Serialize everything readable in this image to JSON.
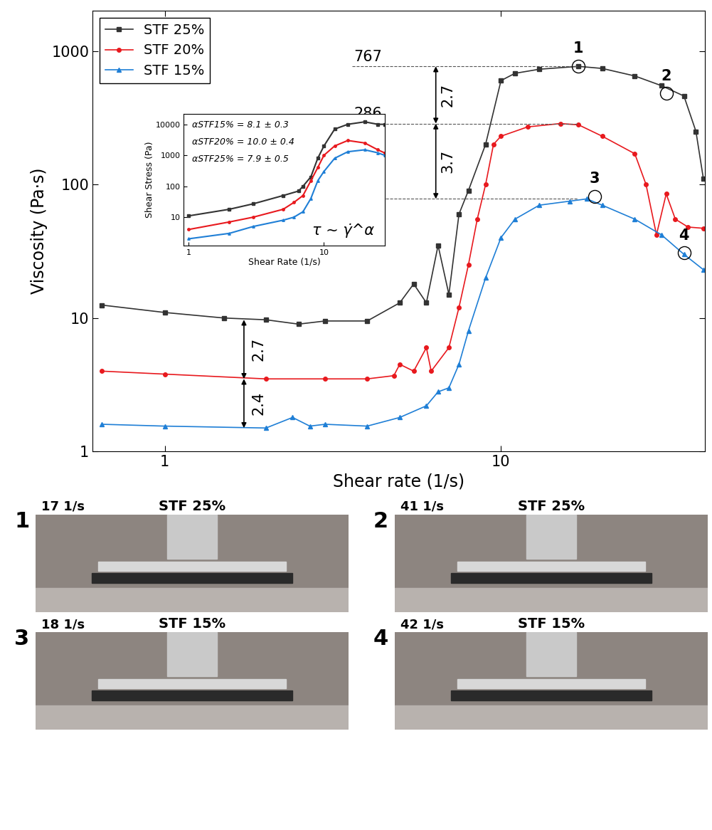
{
  "chart_data": [
    {
      "type": "line",
      "x_label": "Shear rate (1/s)",
      "y_label": "Viscosity (Pa·s)",
      "log": true,
      "xlim": [
        0.61,
        40.4
      ],
      "ylim": [
        1,
        2000
      ],
      "xticks": [
        1,
        10
      ],
      "yticks": [
        1,
        10,
        100,
        1000
      ],
      "legend": "upper left",
      "series": [
        {
          "name": "STF 25%",
          "color": "#333333",
          "marker": "s",
          "x": [
            0.65,
            1,
            1.5,
            2,
            2.5,
            3,
            4,
            5,
            5.5,
            6,
            6.5,
            7,
            7.5,
            8,
            9,
            10,
            11,
            13,
            17,
            20,
            25,
            30,
            35,
            38,
            40
          ],
          "values": [
            12.5,
            11,
            10,
            9.7,
            9,
            9.5,
            9.5,
            13,
            18,
            13,
            35,
            15,
            60,
            90,
            200,
            600,
            680,
            730,
            767,
            740,
            650,
            550,
            460,
            250,
            110
          ]
        },
        {
          "name": "STF 20%",
          "color": "#e8191e",
          "marker": "o",
          "x": [
            0.65,
            1,
            2,
            3,
            4,
            4.8,
            5,
            5.5,
            6,
            6.2,
            7,
            7.5,
            8,
            8.5,
            9,
            9.5,
            10,
            12,
            15,
            17,
            20,
            25,
            27,
            29,
            31,
            33,
            36,
            40
          ],
          "values": [
            4,
            3.8,
            3.5,
            3.5,
            3.5,
            3.7,
            4.5,
            4,
            6,
            4,
            6,
            12,
            25,
            55,
            100,
            200,
            230,
            270,
            286,
            280,
            230,
            170,
            100,
            42,
            85,
            55,
            48,
            47
          ]
        },
        {
          "name": "STF 15%",
          "color": "#1f7fd6",
          "marker": "^",
          "x": [
            0.65,
            1,
            2,
            2.4,
            2.7,
            3,
            4,
            5,
            6,
            6.5,
            7,
            7.5,
            8,
            9,
            10,
            11,
            13,
            16,
            18,
            20,
            25,
            30,
            35,
            40
          ],
          "values": [
            1.6,
            1.55,
            1.5,
            1.8,
            1.55,
            1.6,
            1.55,
            1.8,
            2.2,
            2.8,
            3,
            4.5,
            8,
            20,
            40,
            55,
            70,
            75,
            78,
            70,
            55,
            42,
            30,
            23
          ]
        }
      ],
      "levels": [
        767,
        286,
        78
      ],
      "peak_ratios": [
        {
          "label": "2.7",
          "from": 767,
          "to": 286
        },
        {
          "label": "3.7",
          "from": 286,
          "to": 78
        }
      ],
      "base_ratios": [
        {
          "label": "2.7",
          "from": 9.7,
          "to": 3.5
        },
        {
          "label": "2.4",
          "from": 3.5,
          "to": 1.5
        }
      ],
      "markers": [
        {
          "label": "1",
          "x": 17,
          "y": 767
        },
        {
          "label": "2",
          "x": 31,
          "y": 480
        },
        {
          "label": "3",
          "x": 19,
          "y": 81
        },
        {
          "label": "4",
          "x": 35,
          "y": 30.7
        }
      ]
    },
    {
      "type": "line",
      "x_label": "Shear Rate (1/s)",
      "y_label": "Shear Stress (Pa)",
      "log": true,
      "xlim": [
        0.92,
        28
      ],
      "ylim": [
        1.2,
        22000
      ],
      "xticks": [
        1,
        10
      ],
      "yticks": [
        10,
        100,
        1000,
        10000
      ],
      "alpha_labels": [
        "αSTF15% = 8.1 ± 0.3",
        "αSTF20% = 10.0 ± 0.4",
        "αSTF25% = 7.9 ± 0.5"
      ],
      "formula": "τ ~ γ̇^α",
      "series": [
        {
          "color": "#333333",
          "marker": "s",
          "x": [
            1,
            2,
            3,
            5,
            6.5,
            7,
            8,
            9,
            10,
            12,
            15,
            20,
            25,
            28
          ],
          "values": [
            11,
            18,
            27,
            50,
            70,
            100,
            200,
            800,
            2000,
            7000,
            10000,
            12000,
            10000,
            10000
          ]
        },
        {
          "color": "#e8191e",
          "marker": "o",
          "x": [
            1,
            2,
            3,
            5,
            6,
            7,
            8,
            9,
            10,
            12,
            15,
            20,
            25,
            28
          ],
          "values": [
            4,
            7,
            10,
            18,
            30,
            50,
            150,
            400,
            1000,
            2000,
            3000,
            2500,
            1500,
            1200
          ]
        },
        {
          "color": "#1f7fd6",
          "marker": "^",
          "x": [
            1,
            2,
            3,
            5,
            6,
            7,
            8,
            9,
            10,
            12,
            15,
            20,
            25,
            28
          ],
          "values": [
            2,
            3,
            5,
            8,
            10,
            15,
            40,
            150,
            300,
            800,
            1300,
            1500,
            1200,
            1000
          ]
        }
      ]
    }
  ],
  "panels": [
    {
      "number": "1",
      "rate": "17 1/s",
      "label": "STF 25%"
    },
    {
      "number": "2",
      "rate": "41 1/s",
      "label": "STF 25%"
    },
    {
      "number": "3",
      "rate": "18 1/s",
      "label": "STF 15%"
    },
    {
      "number": "4",
      "rate": "42 1/s",
      "label": "STF 15%"
    }
  ]
}
